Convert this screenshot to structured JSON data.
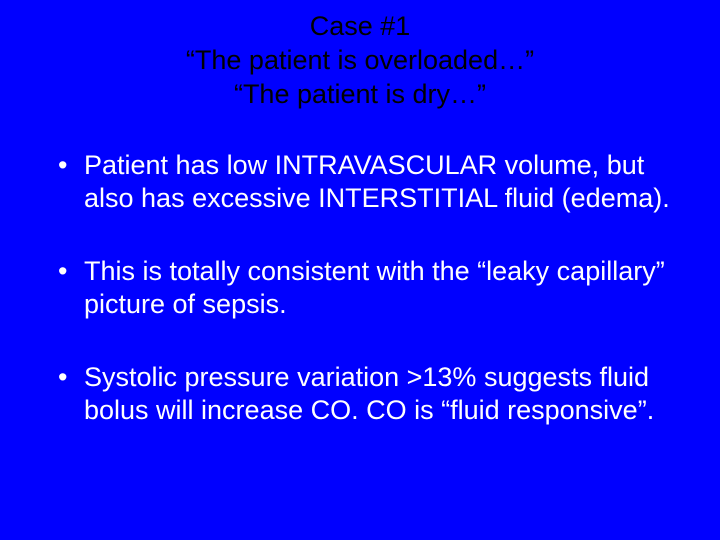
{
  "slide": {
    "background_color": "#0000ff",
    "title_color": "#000000",
    "body_color": "#ffffff",
    "font_family": "Arial",
    "title_fontsize": 27,
    "body_fontsize": 27,
    "title": {
      "line1": "Case #1",
      "line2": "“The patient is overloaded…”",
      "line3": "“The patient is dry…”"
    },
    "bullets": [
      "Patient has low INTRAVASCULAR volume, but also has excessive INTERSTITIAL fluid (edema).",
      "This is totally consistent with the “leaky capillary” picture of sepsis.",
      "Systolic pressure variation >13% suggests fluid bolus will increase CO. CO is “fluid responsive”."
    ]
  }
}
